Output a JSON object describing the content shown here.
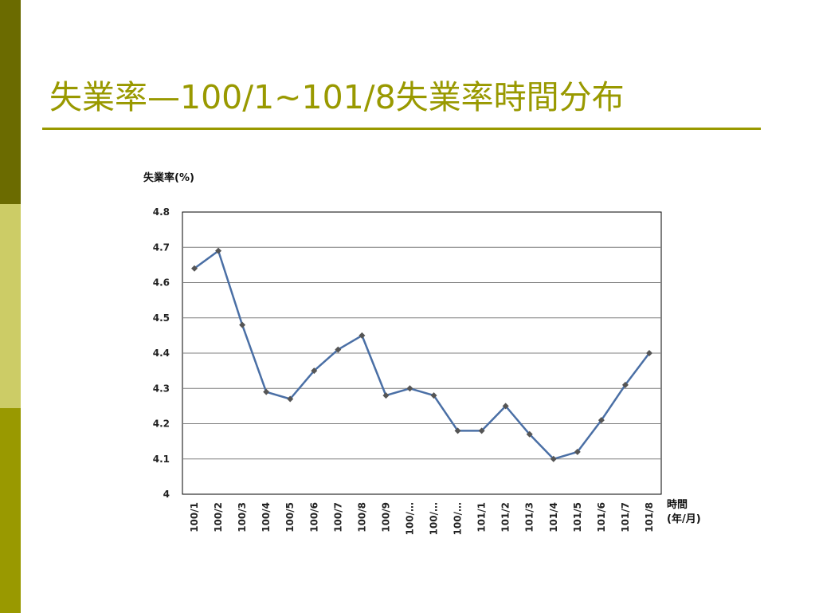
{
  "slide": {
    "title": "失業率—100/1~101/8失業率時間分布",
    "colors": {
      "accent": "#999900",
      "bar_dark": "#6b6b00",
      "bar_light": "#cccc66"
    }
  },
  "chart_data": {
    "type": "line",
    "title": "",
    "ylabel": "失業率(%)",
    "xlabel": [
      "時間",
      "(年/月)"
    ],
    "categories": [
      "100/1",
      "100/2",
      "100/3",
      "100/4",
      "100/5",
      "100/6",
      "100/7",
      "100/8",
      "100/9",
      "100/…",
      "100/…",
      "100/…",
      "101/1",
      "101/2",
      "101/3",
      "101/4",
      "101/5",
      "101/6",
      "101/7",
      "101/8"
    ],
    "series": [
      {
        "values": [
          4.64,
          4.69,
          4.48,
          4.29,
          4.27,
          4.35,
          4.41,
          4.45,
          4.28,
          4.3,
          4.28,
          4.18,
          4.18,
          4.25,
          4.17,
          4.1,
          4.12,
          4.21,
          4.31,
          4.4
        ],
        "color": "#4a6fa5",
        "marker_color": "#555555"
      }
    ],
    "ylim": [
      4,
      4.8
    ],
    "yticks": [
      "4",
      "4.1",
      "4.2",
      "4.3",
      "4.4",
      "4.5",
      "4.6",
      "4.7",
      "4.8"
    ],
    "grid": true,
    "legend": "none"
  }
}
